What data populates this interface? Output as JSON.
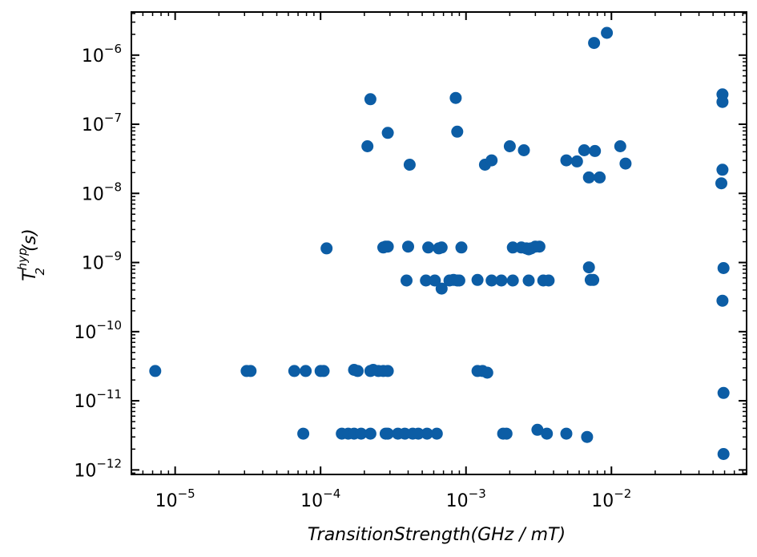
{
  "chart_data": {
    "type": "scatter",
    "title": "",
    "xlabel": "TransitionStrength(GHz / mT)",
    "ylabel_main": "T",
    "ylabel_sup": "hyp",
    "ylabel_sub": "2",
    "ylabel_tail": "(s)",
    "xscale": "log",
    "yscale": "log",
    "xlim": [
      5e-06,
      0.085
    ],
    "ylim": [
      8.6e-13,
      4.2e-06
    ],
    "x_ticks": [
      {
        "base": "10",
        "exp": "−5",
        "value": 1e-05
      },
      {
        "base": "10",
        "exp": "−4",
        "value": 0.0001
      },
      {
        "base": "10",
        "exp": "−3",
        "value": 0.001
      },
      {
        "base": "10",
        "exp": "−2",
        "value": 0.01
      }
    ],
    "y_ticks": [
      {
        "base": "10",
        "exp": "−12",
        "value": 1e-12
      },
      {
        "base": "10",
        "exp": "−11",
        "value": 1e-11
      },
      {
        "base": "10",
        "exp": "−10",
        "value": 1e-10
      },
      {
        "base": "10",
        "exp": "−9",
        "value": 1e-09
      },
      {
        "base": "10",
        "exp": "−8",
        "value": 1e-08
      },
      {
        "base": "10",
        "exp": "−7",
        "value": 1e-07
      },
      {
        "base": "10",
        "exp": "−6",
        "value": 1e-06
      }
    ],
    "grid": false,
    "marker_color": "#0c5da5",
    "points": [
      [
        7.3e-06,
        2.7e-11
      ],
      [
        3.1e-05,
        2.7e-11
      ],
      [
        3.3e-05,
        2.7e-11
      ],
      [
        6.6e-05,
        2.7e-11
      ],
      [
        7.9e-05,
        2.7e-11
      ],
      [
        0.0001,
        2.7e-11
      ],
      [
        0.000105,
        2.7e-11
      ],
      [
        0.00017,
        2.8e-11
      ],
      [
        0.00018,
        2.7e-11
      ],
      [
        0.00022,
        2.7e-11
      ],
      [
        0.00023,
        2.8e-11
      ],
      [
        0.00025,
        2.7e-11
      ],
      [
        0.00027,
        2.7e-11
      ],
      [
        0.00029,
        2.7e-11
      ],
      [
        0.0012,
        2.7e-11
      ],
      [
        0.0013,
        2.7e-11
      ],
      [
        0.0014,
        2.55e-11
      ],
      [
        7.6e-05,
        3.35e-12
      ],
      [
        0.00014,
        3.35e-12
      ],
      [
        0.000155,
        3.35e-12
      ],
      [
        0.00017,
        3.35e-12
      ],
      [
        0.00019,
        3.35e-12
      ],
      [
        0.00022,
        3.35e-12
      ],
      [
        0.00028,
        3.35e-12
      ],
      [
        0.00029,
        3.35e-12
      ],
      [
        0.00034,
        3.35e-12
      ],
      [
        0.00038,
        3.35e-12
      ],
      [
        0.00043,
        3.35e-12
      ],
      [
        0.00047,
        3.35e-12
      ],
      [
        0.00054,
        3.35e-12
      ],
      [
        0.00063,
        3.35e-12
      ],
      [
        0.0018,
        3.35e-12
      ],
      [
        0.0019,
        3.35e-12
      ],
      [
        0.0031,
        3.8e-12
      ],
      [
        0.0036,
        3.35e-12
      ],
      [
        0.0049,
        3.35e-12
      ],
      [
        0.0068,
        3e-12
      ],
      [
        0.00011,
        1.6e-09
      ],
      [
        0.00027,
        1.65e-09
      ],
      [
        0.00028,
        1.7e-09
      ],
      [
        0.00029,
        1.7e-09
      ],
      [
        0.0004,
        1.7e-09
      ],
      [
        0.00055,
        1.65e-09
      ],
      [
        0.00065,
        1.6e-09
      ],
      [
        0.00068,
        1.65e-09
      ],
      [
        0.00093,
        1.65e-09
      ],
      [
        0.0021,
        1.65e-09
      ],
      [
        0.0024,
        1.65e-09
      ],
      [
        0.0026,
        1.6e-09
      ],
      [
        0.0027,
        1.55e-09
      ],
      [
        0.0028,
        1.6e-09
      ],
      [
        0.003,
        1.7e-09
      ],
      [
        0.0032,
        1.7e-09
      ],
      [
        0.00039,
        5.5e-10
      ],
      [
        0.00053,
        5.5e-10
      ],
      [
        0.00061,
        5.5e-10
      ],
      [
        0.00068,
        4.2e-10
      ],
      [
        0.00077,
        5.5e-10
      ],
      [
        0.00082,
        5.6e-10
      ],
      [
        0.00087,
        5.5e-10
      ],
      [
        0.0009,
        5.5e-10
      ],
      [
        0.0012,
        5.6e-10
      ],
      [
        0.0015,
        5.5e-10
      ],
      [
        0.00175,
        5.5e-10
      ],
      [
        0.0021,
        5.5e-10
      ],
      [
        0.0027,
        5.5e-10
      ],
      [
        0.0034,
        5.5e-10
      ],
      [
        0.0037,
        5.5e-10
      ],
      [
        0.007,
        8.5e-10
      ],
      [
        0.0072,
        5.6e-10
      ],
      [
        0.0075,
        5.6e-10
      ],
      [
        0.00021,
        4.8e-08
      ],
      [
        0.00022,
        2.3e-07
      ],
      [
        0.00029,
        7.5e-08
      ],
      [
        0.00041,
        2.6e-08
      ],
      [
        0.00085,
        2.4e-07
      ],
      [
        0.00087,
        7.8e-08
      ],
      [
        0.00135,
        2.6e-08
      ],
      [
        0.0015,
        3e-08
      ],
      [
        0.002,
        4.8e-08
      ],
      [
        0.0025,
        4.2e-08
      ],
      [
        0.0049,
        3e-08
      ],
      [
        0.0058,
        2.9e-08
      ],
      [
        0.0065,
        4.2e-08
      ],
      [
        0.007,
        1.7e-08
      ],
      [
        0.0077,
        4.1e-08
      ],
      [
        0.0083,
        1.7e-08
      ],
      [
        0.0115,
        4.8e-08
      ],
      [
        0.0125,
        2.7e-08
      ],
      [
        0.0076,
        1.5e-06
      ],
      [
        0.0093,
        2.1e-06
      ],
      [
        0.058,
        2.7e-07
      ],
      [
        0.058,
        2.1e-07
      ],
      [
        0.058,
        2.2e-08
      ],
      [
        0.057,
        1.4e-08
      ],
      [
        0.059,
        8.3e-10
      ],
      [
        0.058,
        2.8e-10
      ],
      [
        0.059,
        1.3e-11
      ],
      [
        0.059,
        1.7e-12
      ]
    ]
  }
}
